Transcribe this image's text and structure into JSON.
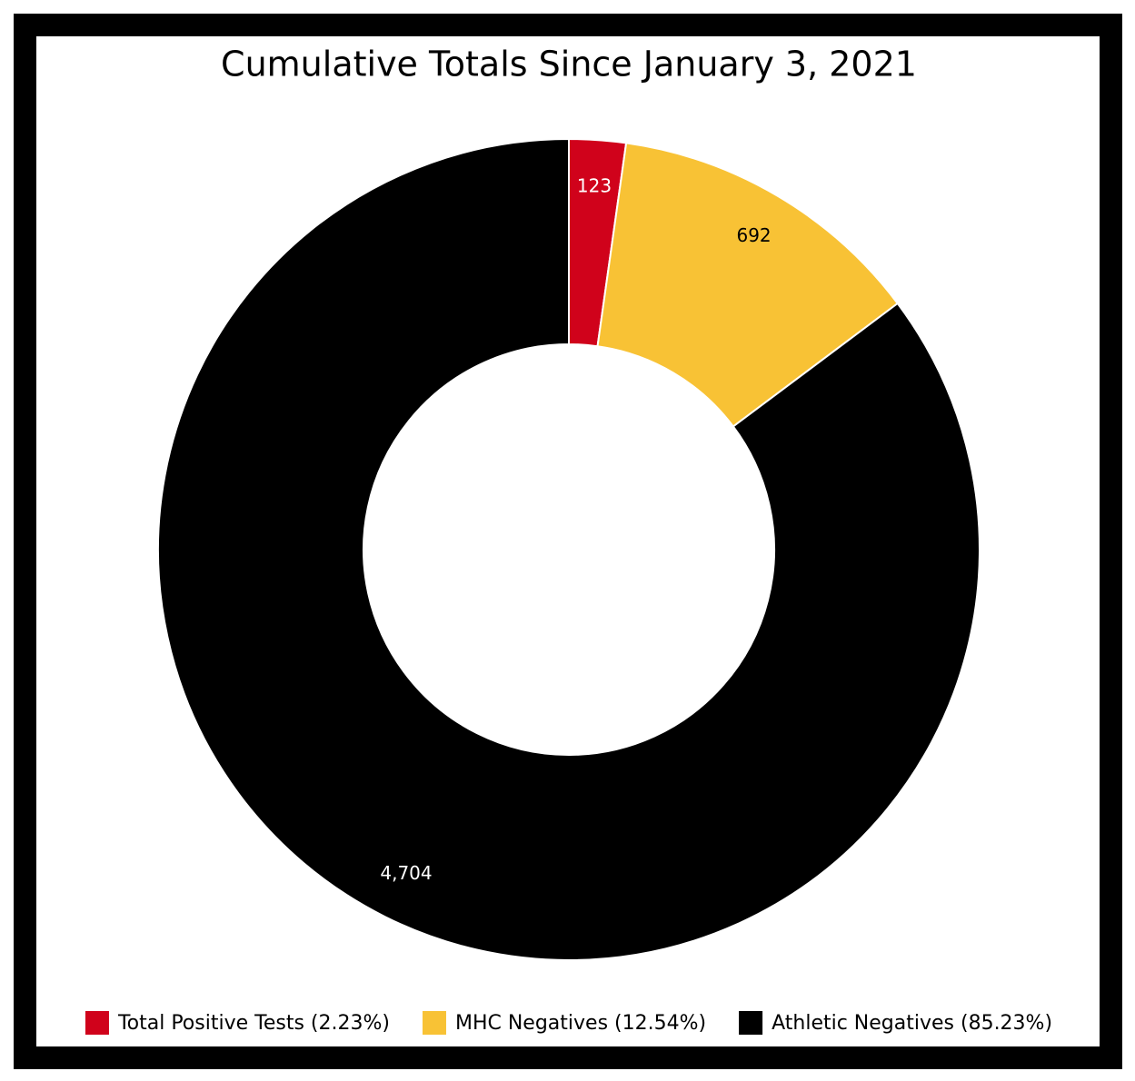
{
  "chart_data": {
    "type": "donut",
    "title": "Cumulative Totals Since January 3, 2021",
    "categories": [
      "Total Positive Tests (2.23%)",
      "MHC Negatives (12.54%)",
      "Athletic Negatives (85.23%)"
    ],
    "values": [
      123,
      692,
      4704
    ],
    "value_labels": [
      "123",
      "692",
      "4,704"
    ],
    "colors": [
      "#d0021b",
      "#f8c235",
      "#000000"
    ],
    "legend": "bottom"
  }
}
